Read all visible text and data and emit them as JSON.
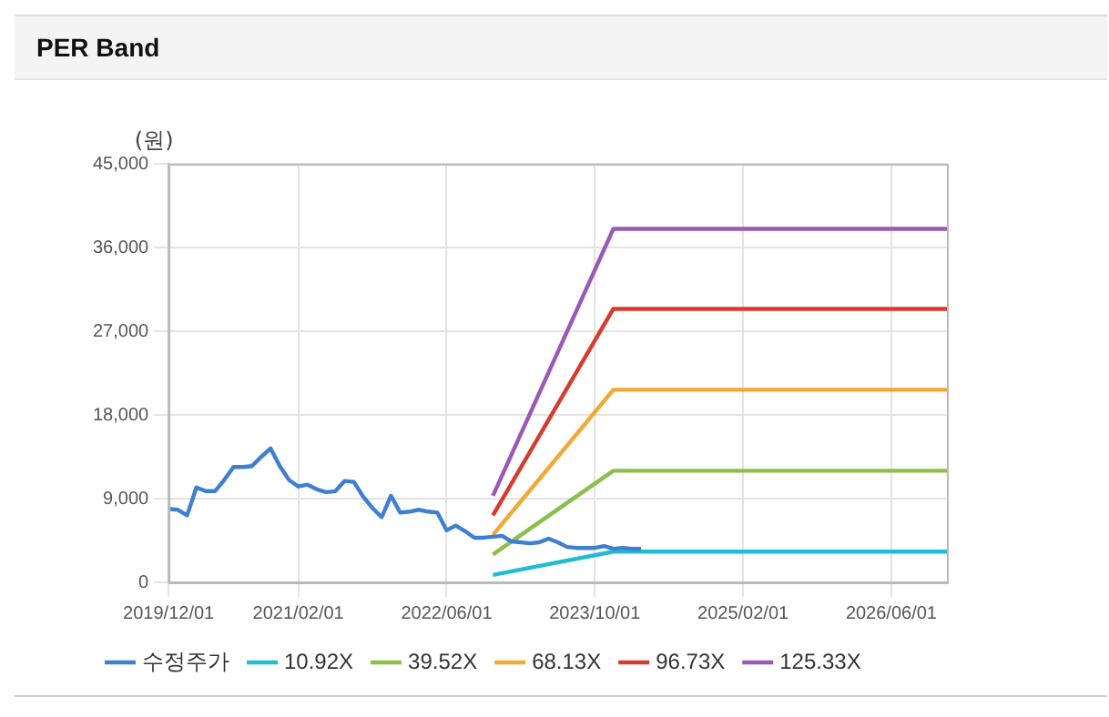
{
  "chart_data": {
    "type": "line",
    "title": "PER Band",
    "ylabel": "(원)",
    "xlim": [
      "2019-12",
      "2026-12"
    ],
    "xticks": [
      {
        "value": "2019-12-01",
        "label": "2019/12/01"
      },
      {
        "value": "2021-02-01",
        "label": "2021/02/01"
      },
      {
        "value": "2022-06-01",
        "label": "2022/06/01"
      },
      {
        "value": "2023-10-01",
        "label": "2023/10/01"
      },
      {
        "value": "2025-02-01",
        "label": "2025/02/01"
      },
      {
        "value": "2026-06-01",
        "label": "2026/06/01"
      }
    ],
    "ylim": [
      0,
      45000
    ],
    "yticks": [
      0,
      {
        "value": 9000,
        "label": "9,000"
      },
      {
        "value": 18000,
        "label": "18,000"
      },
      {
        "value": 27000,
        "label": "27,000"
      },
      {
        "value": 36000,
        "label": "36,000"
      },
      {
        "value": 45000,
        "label": "45,000"
      }
    ],
    "grid": true,
    "legend": "bottom",
    "marker": "none",
    "line_style": "solid",
    "series": [
      {
        "name": "수정주가",
        "color": "#3f7fcf",
        "x": [
          "2019-12",
          "2020-01",
          "2020-02",
          "2020-03",
          "2020-04",
          "2020-05",
          "2020-06",
          "2020-07",
          "2020-08",
          "2020-09",
          "2020-10",
          "2020-11",
          "2020-12",
          "2021-01",
          "2021-02",
          "2021-03",
          "2021-04",
          "2021-05",
          "2021-06",
          "2021-07",
          "2021-08",
          "2021-09",
          "2021-10",
          "2021-11",
          "2021-12",
          "2022-01",
          "2022-02",
          "2022-03",
          "2022-04",
          "2022-05",
          "2022-06",
          "2022-07",
          "2022-08",
          "2022-09",
          "2022-10",
          "2022-11",
          "2022-12",
          "2023-01",
          "2023-02",
          "2023-03",
          "2023-04",
          "2023-05",
          "2023-06",
          "2023-07",
          "2023-08",
          "2023-09",
          "2023-10",
          "2023-11",
          "2023-12",
          "2024-01",
          "2024-02",
          "2024-03"
        ],
        "values": [
          7900,
          7800,
          7200,
          10200,
          9800,
          9800,
          11000,
          12400,
          12400,
          12500,
          13500,
          14400,
          12500,
          11000,
          10300,
          10500,
          10000,
          9700,
          9800,
          10900,
          10800,
          9200,
          8000,
          7000,
          9300,
          7500,
          7600,
          7800,
          7600,
          7500,
          5600,
          6100,
          5500,
          4800,
          4800,
          4900,
          5000,
          4400,
          4300,
          4200,
          4300,
          4700,
          4300,
          3800,
          3700,
          3700,
          3700,
          3900,
          3600,
          3700,
          3600,
          3600
        ]
      },
      {
        "name": "10.92X",
        "color": "#1fbcd2",
        "x": [
          "2022-11",
          "2023-12",
          "2026-12"
        ],
        "values": [
          800,
          3300,
          3300
        ]
      },
      {
        "name": "39.52X",
        "color": "#8bbf4b",
        "x": [
          "2022-11",
          "2023-12",
          "2026-12"
        ],
        "values": [
          3000,
          12000,
          12000
        ]
      },
      {
        "name": "68.13X",
        "color": "#f5a733",
        "x": [
          "2022-11",
          "2023-12",
          "2026-12"
        ],
        "values": [
          5100,
          20700,
          20700
        ]
      },
      {
        "name": "96.73X",
        "color": "#d83a2e",
        "x": [
          "2022-11",
          "2023-12",
          "2026-12"
        ],
        "values": [
          7200,
          29400,
          29400
        ]
      },
      {
        "name": "125.33X",
        "color": "#9b59b6",
        "x": [
          "2022-11",
          "2023-12",
          "2026-12"
        ],
        "values": [
          9300,
          38000,
          38000
        ]
      }
    ]
  }
}
